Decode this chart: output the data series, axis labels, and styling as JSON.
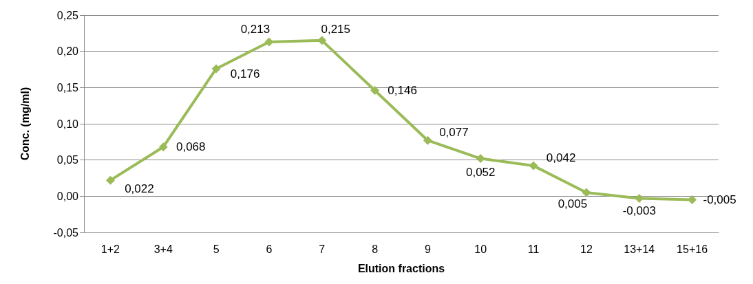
{
  "chart_data": {
    "type": "line",
    "xlabel": "Elution fractions",
    "ylabel": "Conc. (mg/ml)",
    "categories": [
      "1+2",
      "3+4",
      "5",
      "6",
      "7",
      "8",
      "9",
      "10",
      "11",
      "12",
      "13+14",
      "15+16"
    ],
    "series": [
      {
        "color": "#9bbb59",
        "values": [
          0.022,
          0.068,
          0.176,
          0.213,
          0.215,
          0.146,
          0.077,
          0.052,
          0.042,
          0.005,
          -0.003,
          -0.005
        ],
        "value_labels": [
          "0,022",
          "0,068",
          "0,176",
          "0,213",
          "0,215",
          "0,146",
          "0,077",
          "0,052",
          "0,042",
          "0,005",
          "-0,003",
          "-0,005"
        ]
      }
    ],
    "ylim": [
      -0.05,
      0.25
    ],
    "yticks": [
      {
        "value": -0.05,
        "label": "-0,05"
      },
      {
        "value": 0,
        "label": "0,00"
      },
      {
        "value": 0.05,
        "label": "0,05"
      },
      {
        "value": 0.1,
        "label": "0,10"
      },
      {
        "value": 0.15,
        "label": "0,15"
      },
      {
        "value": 0.2,
        "label": "0,20"
      },
      {
        "value": 0.25,
        "label": "0,25"
      }
    ],
    "grid": "y",
    "marker": "diamond",
    "line_style": "solid"
  }
}
